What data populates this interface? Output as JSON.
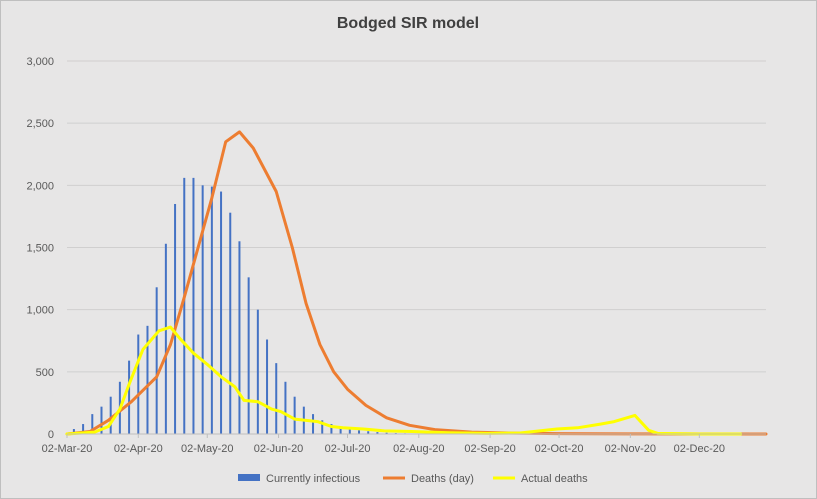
{
  "chart_data": {
    "type": "bar+line",
    "title": "Bodged SIR model",
    "ylim": [
      0,
      3000
    ],
    "yticks": [
      0,
      500,
      1000,
      1500,
      2000,
      2500,
      3000
    ],
    "ytick_labels": [
      "0",
      "500",
      "1,000",
      "1,500",
      "2,000",
      "2,500",
      "3,000"
    ],
    "x_start": "2020-03-02",
    "x_end": "2020-12-31",
    "xtick_dates": [
      "2020-03-02",
      "2020-04-02",
      "2020-05-02",
      "2020-06-02",
      "2020-07-02",
      "2020-08-02",
      "2020-09-02",
      "2020-10-02",
      "2020-11-02",
      "2020-12-02"
    ],
    "xtick_labels": [
      "02-Mar-20",
      "02-Apr-20",
      "02-May-20",
      "02-Jun-20",
      "02-Jul-20",
      "02-Aug-20",
      "02-Sep-20",
      "02-Oct-20",
      "02-Nov-20",
      "02-Dec-20"
    ],
    "grid": "horizontal",
    "legend_position": "bottom",
    "series": [
      {
        "name": "Currently infectious",
        "type": "bar",
        "color": "#4472c4",
        "points": [
          [
            "2020-03-05",
            40
          ],
          [
            "2020-03-09",
            80
          ],
          [
            "2020-03-13",
            160
          ],
          [
            "2020-03-17",
            220
          ],
          [
            "2020-03-21",
            300
          ],
          [
            "2020-03-25",
            420
          ],
          [
            "2020-03-29",
            590
          ],
          [
            "2020-04-02",
            800
          ],
          [
            "2020-04-06",
            870
          ],
          [
            "2020-04-10",
            1180
          ],
          [
            "2020-04-14",
            1530
          ],
          [
            "2020-04-18",
            1850
          ],
          [
            "2020-04-22",
            2060
          ],
          [
            "2020-04-26",
            2060
          ],
          [
            "2020-04-30",
            2000
          ],
          [
            "2020-05-04",
            1990
          ],
          [
            "2020-05-08",
            1950
          ],
          [
            "2020-05-12",
            1780
          ],
          [
            "2020-05-16",
            1550
          ],
          [
            "2020-05-20",
            1260
          ],
          [
            "2020-05-24",
            1000
          ],
          [
            "2020-05-28",
            760
          ],
          [
            "2020-06-01",
            570
          ],
          [
            "2020-06-05",
            420
          ],
          [
            "2020-06-09",
            300
          ],
          [
            "2020-06-13",
            220
          ],
          [
            "2020-06-17",
            160
          ],
          [
            "2020-06-21",
            110
          ],
          [
            "2020-06-25",
            80
          ],
          [
            "2020-06-29",
            60
          ],
          [
            "2020-07-03",
            45
          ],
          [
            "2020-07-07",
            30
          ],
          [
            "2020-07-11",
            22
          ],
          [
            "2020-07-15",
            15
          ],
          [
            "2020-07-19",
            10
          ],
          [
            "2020-07-23",
            7
          ],
          [
            "2020-07-27",
            5
          ],
          [
            "2020-07-31",
            3
          ]
        ]
      },
      {
        "name": "Deaths (day)",
        "type": "line",
        "color": "#ed7d31",
        "points": [
          [
            "2020-03-02",
            0
          ],
          [
            "2020-03-12",
            20
          ],
          [
            "2020-03-20",
            110
          ],
          [
            "2020-03-30",
            260
          ],
          [
            "2020-04-10",
            460
          ],
          [
            "2020-04-16",
            720
          ],
          [
            "2020-04-22",
            1100
          ],
          [
            "2020-04-28",
            1500
          ],
          [
            "2020-05-04",
            1900
          ],
          [
            "2020-05-10",
            2350
          ],
          [
            "2020-05-16",
            2430
          ],
          [
            "2020-05-22",
            2300
          ],
          [
            "2020-06-01",
            1950
          ],
          [
            "2020-06-08",
            1500
          ],
          [
            "2020-06-14",
            1050
          ],
          [
            "2020-06-20",
            720
          ],
          [
            "2020-06-26",
            500
          ],
          [
            "2020-07-02",
            360
          ],
          [
            "2020-07-10",
            230
          ],
          [
            "2020-07-19",
            130
          ],
          [
            "2020-07-29",
            70
          ],
          [
            "2020-08-09",
            35
          ],
          [
            "2020-08-25",
            15
          ],
          [
            "2020-09-10",
            8
          ],
          [
            "2020-10-01",
            3
          ],
          [
            "2020-11-01",
            1
          ],
          [
            "2020-12-31",
            0
          ]
        ]
      },
      {
        "name": "Actual deaths",
        "type": "line",
        "color": "#ffff00",
        "points": [
          [
            "2020-03-02",
            0
          ],
          [
            "2020-03-14",
            15
          ],
          [
            "2020-03-20",
            60
          ],
          [
            "2020-03-25",
            200
          ],
          [
            "2020-03-29",
            400
          ],
          [
            "2020-04-04",
            680
          ],
          [
            "2020-04-11",
            830
          ],
          [
            "2020-04-16",
            860
          ],
          [
            "2020-04-20",
            770
          ],
          [
            "2020-04-26",
            650
          ],
          [
            "2020-05-02",
            560
          ],
          [
            "2020-05-08",
            460
          ],
          [
            "2020-05-14",
            380
          ],
          [
            "2020-05-18",
            270
          ],
          [
            "2020-05-24",
            260
          ],
          [
            "2020-05-30",
            200
          ],
          [
            "2020-06-03",
            180
          ],
          [
            "2020-06-09",
            120
          ],
          [
            "2020-06-19",
            100
          ],
          [
            "2020-06-25",
            60
          ],
          [
            "2020-06-30",
            50
          ],
          [
            "2020-07-09",
            40
          ],
          [
            "2020-07-18",
            25
          ],
          [
            "2020-07-30",
            20
          ],
          [
            "2020-08-15",
            10
          ],
          [
            "2020-09-01",
            5
          ],
          [
            "2020-09-15",
            8
          ],
          [
            "2020-10-01",
            40
          ],
          [
            "2020-10-10",
            50
          ],
          [
            "2020-10-20",
            80
          ],
          [
            "2020-10-26",
            100
          ],
          [
            "2020-11-04",
            150
          ],
          [
            "2020-11-10",
            30
          ],
          [
            "2020-11-14",
            5
          ],
          [
            "2020-12-02",
            0
          ],
          [
            "2020-12-20",
            0
          ]
        ]
      }
    ]
  }
}
